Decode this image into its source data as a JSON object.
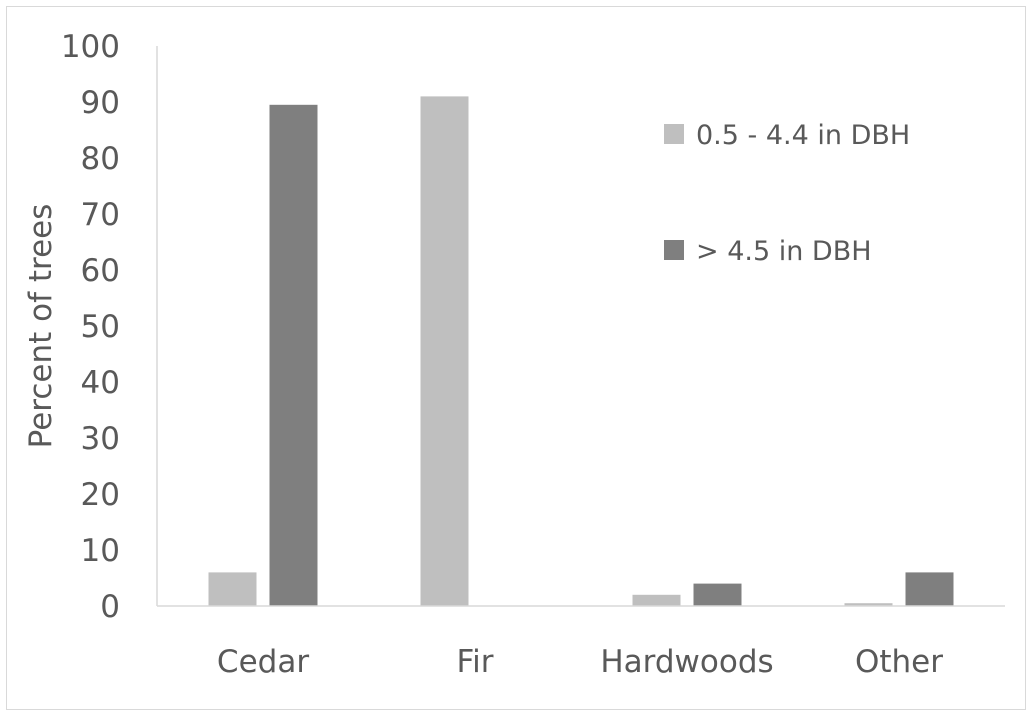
{
  "chart_data": {
    "type": "bar",
    "title": "",
    "xlabel": "",
    "ylabel": "Percent of trees",
    "ylim": [
      0,
      100
    ],
    "yticks": [
      0,
      10,
      20,
      30,
      40,
      50,
      60,
      70,
      80,
      90,
      100
    ],
    "grid": false,
    "legend_position": "top-right",
    "categories": [
      "Cedar",
      "Fir",
      "Hardwoods",
      "Other"
    ],
    "series": [
      {
        "name": "0.5 - 4.4 in DBH",
        "color": "#bfbfbf",
        "values": [
          6,
          91,
          2,
          0.5
        ]
      },
      {
        "name": "> 4.5 in DBH",
        "color": "#7f7f7f",
        "values": [
          89.5,
          0,
          4,
          6
        ]
      }
    ]
  }
}
